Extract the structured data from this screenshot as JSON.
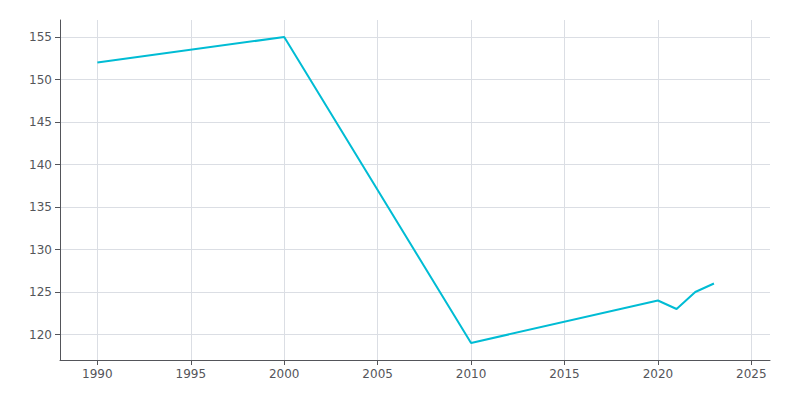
{
  "chart_data": {
    "type": "line",
    "x": [
      1990,
      2000,
      2010,
      2020,
      2021,
      2022,
      2023
    ],
    "values": [
      152,
      155,
      119,
      124,
      123,
      125,
      126
    ],
    "color": "#00BCD4",
    "xlim": [
      1988,
      2026
    ],
    "ylim": [
      117,
      157
    ],
    "xticks": [
      1990,
      1995,
      2000,
      2005,
      2010,
      2015,
      2020,
      2025
    ],
    "yticks": [
      120,
      125,
      130,
      135,
      140,
      145,
      150,
      155
    ],
    "grid": true
  }
}
